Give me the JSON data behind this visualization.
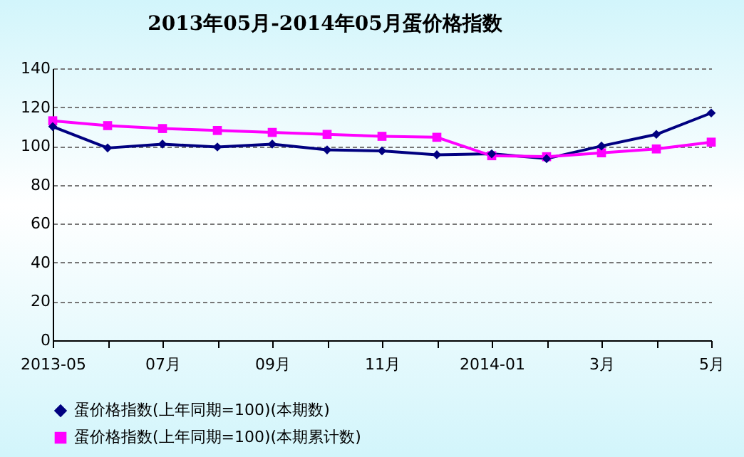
{
  "chart_data": {
    "type": "line",
    "title": "2013年05月-2014年05月蛋价格指数",
    "categories": [
      "2013-05",
      null,
      "07月",
      null,
      "09月",
      null,
      "11月",
      null,
      "2014-01",
      null,
      "3月",
      null,
      "5月"
    ],
    "series": [
      {
        "name": "蛋价格指数(上年同期=100)(本期数)",
        "color": "#000080",
        "marker": "diamond",
        "values": [
          110,
          99,
          101,
          99.5,
          101,
          98,
          97.5,
          95.5,
          96,
          93.5,
          100,
          106,
          117
        ]
      },
      {
        "name": "蛋价格指数(上年同期=100)(本期累计数)",
        "color": "#ff00ff",
        "marker": "square",
        "values": [
          113,
          110.5,
          109,
          108,
          107,
          106,
          105,
          104.5,
          95,
          94.5,
          96.5,
          98.5,
          102
        ]
      }
    ],
    "ylim": [
      0,
      140
    ],
    "yticks": [
      0,
      20,
      40,
      60,
      80,
      100,
      120,
      140
    ],
    "grid": "y",
    "legend": "bottom",
    "line_style": "solid"
  }
}
